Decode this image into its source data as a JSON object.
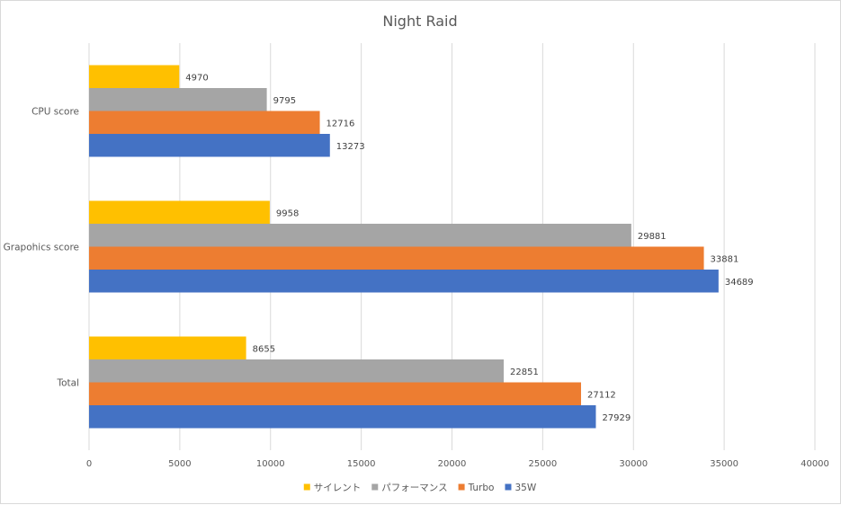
{
  "chart_data": {
    "type": "bar",
    "orientation": "horizontal",
    "title": "Night Raid",
    "categories": [
      "CPU score",
      "Grapohics score",
      "Total"
    ],
    "series": [
      {
        "name": "サイレント",
        "color": "#FFC000",
        "values": [
          4970,
          9958,
          8655
        ]
      },
      {
        "name": "パフォーマンス",
        "color": "#A5A5A5",
        "values": [
          9795,
          29881,
          22851
        ]
      },
      {
        "name": "Turbo",
        "color": "#ED7D31",
        "values": [
          12716,
          33881,
          27112
        ]
      },
      {
        "name": "35W",
        "color": "#4472C4",
        "values": [
          13273,
          34689,
          27929
        ]
      }
    ],
    "xlim": [
      0,
      40000
    ],
    "xticks": [
      0,
      5000,
      10000,
      15000,
      20000,
      25000,
      30000,
      35000,
      40000
    ],
    "xlabel": "",
    "ylabel": "",
    "grid": true,
    "legend_position": "bottom",
    "data_labels": true
  }
}
